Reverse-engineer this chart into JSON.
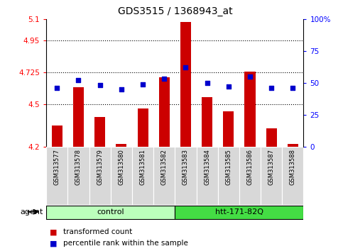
{
  "title": "GDS3515 / 1368943_at",
  "samples": [
    "GSM313577",
    "GSM313578",
    "GSM313579",
    "GSM313580",
    "GSM313581",
    "GSM313582",
    "GSM313583",
    "GSM313584",
    "GSM313585",
    "GSM313586",
    "GSM313587",
    "GSM313588"
  ],
  "transformed_count": [
    4.35,
    4.62,
    4.41,
    4.22,
    4.47,
    4.69,
    5.08,
    4.55,
    4.45,
    4.73,
    4.33,
    4.22
  ],
  "percentile_rank": [
    46,
    52,
    48,
    45,
    49,
    53,
    62,
    50,
    47,
    55,
    46,
    46
  ],
  "bar_color": "#cc0000",
  "dot_color": "#0000cc",
  "ylim_left": [
    4.2,
    5.1
  ],
  "ylim_right": [
    0,
    100
  ],
  "yticks_left": [
    4.2,
    4.5,
    4.725,
    4.95,
    5.1
  ],
  "ytick_labels_left": [
    "4.2",
    "4.5",
    "4.725",
    "4.95",
    "5.1"
  ],
  "yticks_right": [
    0,
    25,
    50,
    75,
    100
  ],
  "ytick_labels_right": [
    "0",
    "25",
    "50",
    "75",
    "100%"
  ],
  "hlines": [
    4.5,
    4.725,
    4.95
  ],
  "groups": [
    {
      "label": "control",
      "start": 0,
      "end": 6,
      "color": "#bbffbb"
    },
    {
      "label": "htt-171-82Q",
      "start": 6,
      "end": 12,
      "color": "#44dd44"
    }
  ],
  "agent_label": "agent",
  "legend": [
    {
      "label": "transformed count",
      "color": "#cc0000"
    },
    {
      "label": "percentile rank within the sample",
      "color": "#0000cc"
    }
  ]
}
